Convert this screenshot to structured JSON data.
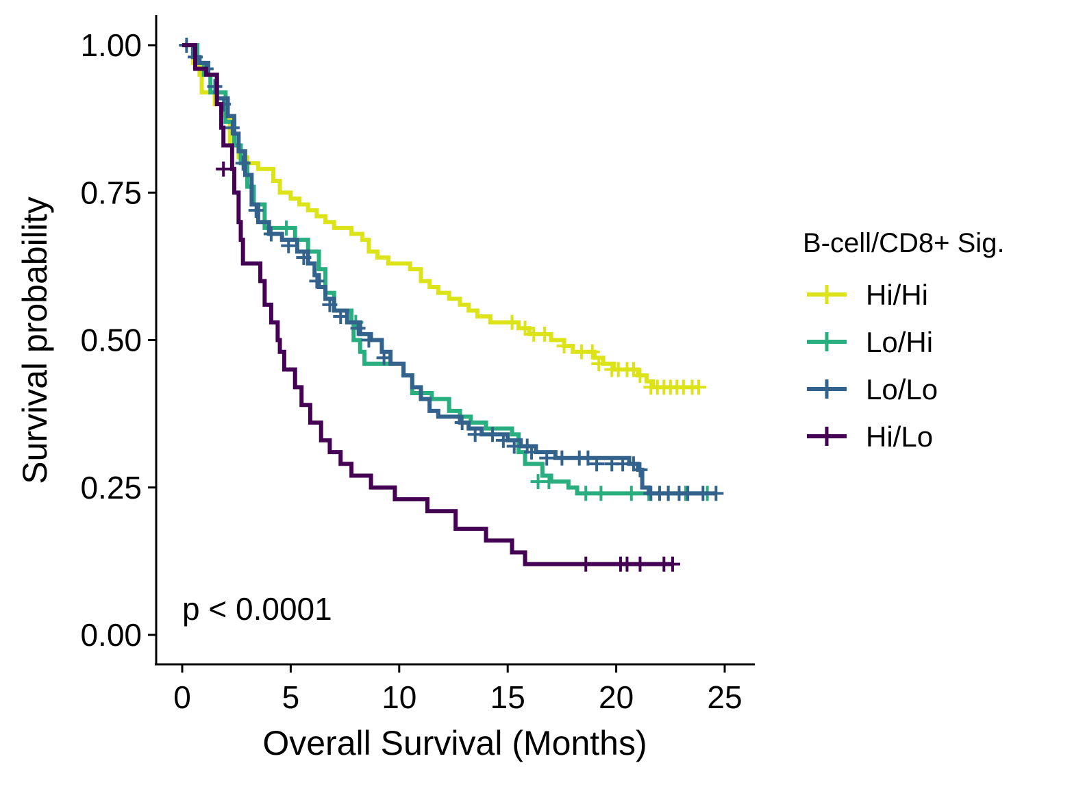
{
  "chart_data": {
    "type": "line",
    "subtype": "kaplan-meier",
    "xlabel": "Overall Survival (Months)",
    "ylabel": "Survival probability",
    "xlim": [
      0,
      25
    ],
    "ylim": [
      0,
      1
    ],
    "x_ticks": [
      0,
      5,
      10,
      15,
      20,
      25
    ],
    "x_tick_labels": [
      "0",
      "5",
      "10",
      "15",
      "20",
      "25"
    ],
    "y_ticks": [
      0,
      0.25,
      0.5,
      0.75,
      1.0
    ],
    "y_tick_labels": [
      "0.00",
      "0.25",
      "0.50",
      "0.75",
      "1.00"
    ],
    "grid": false,
    "legend": {
      "title": "B-cell/CD8+ Sig.",
      "position": "right"
    },
    "annotation": "p < 0.0001",
    "series": [
      {
        "name": "Hi/Hi",
        "color": "#DCE319",
        "steps": [
          [
            0,
            1.0
          ],
          [
            0.5,
            0.97
          ],
          [
            0.8,
            0.95
          ],
          [
            0.9,
            0.92
          ],
          [
            1.5,
            0.9
          ],
          [
            1.9,
            0.88
          ],
          [
            2.2,
            0.83
          ],
          [
            2.6,
            0.81
          ],
          [
            3.0,
            0.8
          ],
          [
            3.5,
            0.79
          ],
          [
            4.2,
            0.77
          ],
          [
            4.5,
            0.75
          ],
          [
            5.0,
            0.74
          ],
          [
            5.4,
            0.73
          ],
          [
            5.8,
            0.72
          ],
          [
            6.2,
            0.71
          ],
          [
            6.6,
            0.7
          ],
          [
            7.0,
            0.69
          ],
          [
            7.8,
            0.68
          ],
          [
            8.3,
            0.67
          ],
          [
            8.6,
            0.65
          ],
          [
            9.0,
            0.64
          ],
          [
            9.5,
            0.63
          ],
          [
            10.5,
            0.62
          ],
          [
            11.0,
            0.6
          ],
          [
            11.4,
            0.59
          ],
          [
            11.8,
            0.58
          ],
          [
            12.3,
            0.57
          ],
          [
            12.8,
            0.56
          ],
          [
            13.2,
            0.55
          ],
          [
            13.6,
            0.54
          ],
          [
            14.2,
            0.53
          ],
          [
            15.5,
            0.52
          ],
          [
            16.0,
            0.51
          ],
          [
            17.0,
            0.5
          ],
          [
            17.6,
            0.49
          ],
          [
            18.0,
            0.48
          ],
          [
            19.0,
            0.47
          ],
          [
            19.4,
            0.46
          ],
          [
            19.9,
            0.45
          ],
          [
            21.0,
            0.44
          ],
          [
            21.4,
            0.43
          ],
          [
            21.7,
            0.42
          ],
          [
            23.8,
            0.42
          ]
        ],
        "censored": [
          [
            15.2,
            0.53
          ],
          [
            15.8,
            0.52
          ],
          [
            16.2,
            0.51
          ],
          [
            16.7,
            0.51
          ],
          [
            17.6,
            0.49
          ],
          [
            18.4,
            0.48
          ],
          [
            18.9,
            0.48
          ],
          [
            19.2,
            0.46
          ],
          [
            19.8,
            0.45
          ],
          [
            20.1,
            0.45
          ],
          [
            20.5,
            0.45
          ],
          [
            20.8,
            0.45
          ],
          [
            21.1,
            0.44
          ],
          [
            21.6,
            0.42
          ],
          [
            21.9,
            0.42
          ],
          [
            22.2,
            0.42
          ],
          [
            22.5,
            0.42
          ],
          [
            22.8,
            0.42
          ],
          [
            23.1,
            0.42
          ],
          [
            23.5,
            0.42
          ],
          [
            23.8,
            0.42
          ]
        ]
      },
      {
        "name": "Lo/Hi",
        "color": "#29AF7F",
        "steps": [
          [
            0,
            1.0
          ],
          [
            0.7,
            0.97
          ],
          [
            1.0,
            0.95
          ],
          [
            1.3,
            0.92
          ],
          [
            2.0,
            0.87
          ],
          [
            2.4,
            0.83
          ],
          [
            2.7,
            0.8
          ],
          [
            3.0,
            0.76
          ],
          [
            3.3,
            0.73
          ],
          [
            3.8,
            0.69
          ],
          [
            5.2,
            0.67
          ],
          [
            5.8,
            0.65
          ],
          [
            6.3,
            0.62
          ],
          [
            6.6,
            0.58
          ],
          [
            7.0,
            0.55
          ],
          [
            7.8,
            0.53
          ],
          [
            7.9,
            0.5
          ],
          [
            8.2,
            0.48
          ],
          [
            8.4,
            0.46
          ],
          [
            10.2,
            0.44
          ],
          [
            10.6,
            0.41
          ],
          [
            11.5,
            0.4
          ],
          [
            12.3,
            0.38
          ],
          [
            12.8,
            0.37
          ],
          [
            13.3,
            0.36
          ],
          [
            14.0,
            0.35
          ],
          [
            15.2,
            0.34
          ],
          [
            15.5,
            0.31
          ],
          [
            15.8,
            0.29
          ],
          [
            16.6,
            0.27
          ],
          [
            17.0,
            0.26
          ],
          [
            17.8,
            0.25
          ],
          [
            18.2,
            0.24
          ],
          [
            24.2,
            0.24
          ]
        ],
        "censored": [
          [
            4.8,
            0.69
          ],
          [
            8.0,
            0.53
          ],
          [
            16.4,
            0.26
          ],
          [
            16.9,
            0.26
          ],
          [
            18.6,
            0.24
          ],
          [
            19.3,
            0.24
          ],
          [
            20.7,
            0.24
          ],
          [
            21.5,
            0.24
          ],
          [
            22.4,
            0.24
          ],
          [
            23.2,
            0.24
          ],
          [
            24.2,
            0.24
          ]
        ]
      },
      {
        "name": "Lo/Lo",
        "color": "#33638D",
        "steps": [
          [
            0,
            1.0
          ],
          [
            0.5,
            0.98
          ],
          [
            0.8,
            0.97
          ],
          [
            1.2,
            0.95
          ],
          [
            1.6,
            0.91
          ],
          [
            2.1,
            0.88
          ],
          [
            2.4,
            0.85
          ],
          [
            2.6,
            0.82
          ],
          [
            2.9,
            0.78
          ],
          [
            3.2,
            0.73
          ],
          [
            3.5,
            0.7
          ],
          [
            4.0,
            0.68
          ],
          [
            4.6,
            0.67
          ],
          [
            5.3,
            0.65
          ],
          [
            5.8,
            0.63
          ],
          [
            6.1,
            0.61
          ],
          [
            6.3,
            0.59
          ],
          [
            6.6,
            0.57
          ],
          [
            7.0,
            0.55
          ],
          [
            7.6,
            0.53
          ],
          [
            8.2,
            0.51
          ],
          [
            8.7,
            0.5
          ],
          [
            9.2,
            0.48
          ],
          [
            9.6,
            0.46
          ],
          [
            10.2,
            0.44
          ],
          [
            10.6,
            0.42
          ],
          [
            11.0,
            0.4
          ],
          [
            11.4,
            0.38
          ],
          [
            11.8,
            0.37
          ],
          [
            12.8,
            0.36
          ],
          [
            13.2,
            0.35
          ],
          [
            13.8,
            0.34
          ],
          [
            15.0,
            0.33
          ],
          [
            15.6,
            0.32
          ],
          [
            16.3,
            0.31
          ],
          [
            17.2,
            0.3
          ],
          [
            20.6,
            0.29
          ],
          [
            21.0,
            0.28
          ],
          [
            21.2,
            0.25
          ],
          [
            21.5,
            0.24
          ],
          [
            24.6,
            0.24
          ]
        ],
        "censored": [
          [
            0.2,
            1.0
          ],
          [
            0.6,
            0.98
          ],
          [
            1.1,
            0.96
          ],
          [
            1.5,
            0.93
          ],
          [
            1.9,
            0.9
          ],
          [
            2.3,
            0.86
          ],
          [
            2.8,
            0.8
          ],
          [
            3.4,
            0.72
          ],
          [
            4.1,
            0.68
          ],
          [
            4.9,
            0.66
          ],
          [
            5.6,
            0.64
          ],
          [
            6.2,
            0.6
          ],
          [
            6.8,
            0.56
          ],
          [
            7.3,
            0.54
          ],
          [
            8.1,
            0.52
          ],
          [
            8.6,
            0.5
          ],
          [
            9.3,
            0.47
          ],
          [
            12.9,
            0.36
          ],
          [
            13.5,
            0.34
          ],
          [
            14.3,
            0.34
          ],
          [
            14.8,
            0.33
          ],
          [
            15.3,
            0.32
          ],
          [
            15.9,
            0.32
          ],
          [
            16.1,
            0.31
          ],
          [
            16.8,
            0.3
          ],
          [
            17.5,
            0.3
          ],
          [
            18.3,
            0.3
          ],
          [
            18.7,
            0.3
          ],
          [
            19.1,
            0.29
          ],
          [
            19.8,
            0.29
          ],
          [
            20.3,
            0.29
          ],
          [
            20.8,
            0.29
          ],
          [
            21.1,
            0.28
          ],
          [
            21.6,
            0.24
          ],
          [
            22.0,
            0.24
          ],
          [
            22.4,
            0.24
          ],
          [
            22.9,
            0.24
          ],
          [
            23.3,
            0.24
          ],
          [
            24.0,
            0.24
          ],
          [
            24.6,
            0.24
          ]
        ]
      },
      {
        "name": "Hi/Lo",
        "color": "#440154",
        "steps": [
          [
            0,
            1.0
          ],
          [
            0.6,
            0.96
          ],
          [
            1.1,
            0.95
          ],
          [
            1.6,
            0.9
          ],
          [
            1.8,
            0.86
          ],
          [
            1.9,
            0.83
          ],
          [
            2.3,
            0.79
          ],
          [
            2.4,
            0.75
          ],
          [
            2.6,
            0.7
          ],
          [
            2.7,
            0.67
          ],
          [
            2.8,
            0.63
          ],
          [
            3.6,
            0.6
          ],
          [
            3.8,
            0.56
          ],
          [
            4.1,
            0.53
          ],
          [
            4.4,
            0.5
          ],
          [
            4.5,
            0.48
          ],
          [
            4.7,
            0.45
          ],
          [
            5.2,
            0.42
          ],
          [
            5.5,
            0.39
          ],
          [
            5.9,
            0.36
          ],
          [
            6.4,
            0.33
          ],
          [
            6.8,
            0.31
          ],
          [
            7.3,
            0.29
          ],
          [
            7.8,
            0.27
          ],
          [
            8.7,
            0.25
          ],
          [
            9.8,
            0.23
          ],
          [
            11.3,
            0.21
          ],
          [
            12.6,
            0.18
          ],
          [
            14.0,
            0.16
          ],
          [
            15.2,
            0.14
          ],
          [
            15.8,
            0.12
          ],
          [
            22.6,
            0.12
          ]
        ],
        "censored": [
          [
            1.9,
            0.79
          ],
          [
            18.6,
            0.12
          ],
          [
            20.2,
            0.12
          ],
          [
            20.5,
            0.12
          ],
          [
            21.1,
            0.12
          ],
          [
            22.2,
            0.12
          ],
          [
            22.6,
            0.12
          ]
        ]
      }
    ]
  }
}
